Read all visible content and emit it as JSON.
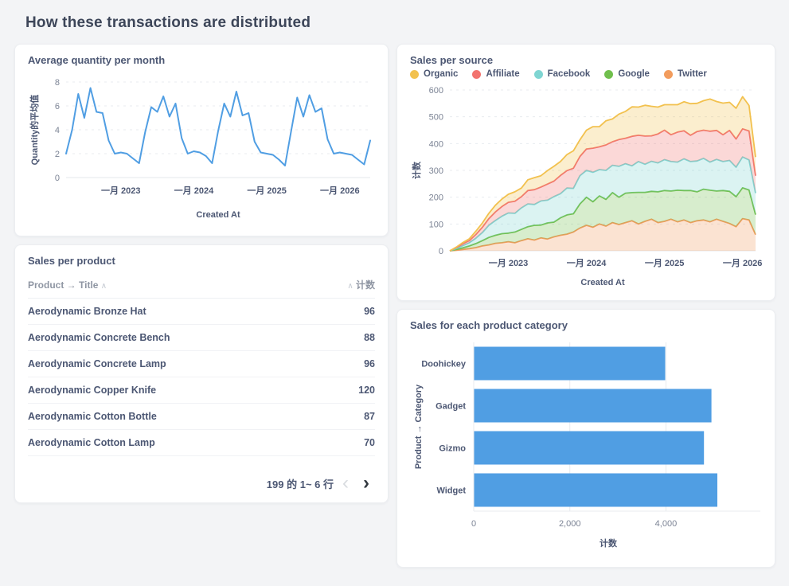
{
  "page": {
    "title": "How these transactions are distributed"
  },
  "colors": {
    "accent": "#509EE3",
    "grid": "#E8EBEF",
    "zero_line": "#E4E7EB",
    "tick": "#7C8495",
    "axis": "#4C5773",
    "title": "#3D4659",
    "page_bg": "#F3F4F6",
    "card_bg": "#FFFFFF"
  },
  "icons": {
    "sort_caret": "∧",
    "prev_page": "‹",
    "next_page": "›"
  },
  "chart_data": [
    {
      "type": "line",
      "title": "Average quantity per month",
      "xlabel": "Created At",
      "ylabel": "Quantity的平均值",
      "ylim": [
        0,
        8
      ],
      "yticks": [
        0,
        2,
        4,
        6,
        8
      ],
      "color": "#509EE3",
      "x_unit": "month",
      "xticks": [
        {
          "i": 9,
          "label": "一月 2023"
        },
        {
          "i": 21,
          "label": "一月 2024"
        },
        {
          "i": 33,
          "label": "一月 2025"
        },
        {
          "i": 45,
          "label": "一月 2026"
        }
      ],
      "values": [
        2.0,
        4.0,
        7.0,
        5.0,
        7.5,
        5.5,
        5.4,
        3.1,
        2.0,
        2.1,
        2.0,
        1.6,
        1.2,
        3.8,
        5.9,
        5.5,
        6.8,
        5.1,
        6.2,
        3.3,
        2.0,
        2.2,
        2.1,
        1.8,
        1.2,
        3.9,
        6.2,
        5.1,
        7.2,
        5.2,
        5.4,
        3.0,
        2.1,
        2.0,
        1.9,
        1.5,
        1.0,
        3.9,
        6.7,
        5.1,
        6.9,
        5.5,
        5.8,
        3.2,
        2.0,
        2.1,
        2.0,
        1.9,
        1.5,
        1.1,
        3.1
      ]
    },
    {
      "type": "area",
      "title": "Sales per source",
      "xlabel": "Created At",
      "ylabel": "计数",
      "ylim": [
        0,
        600
      ],
      "yticks": [
        0,
        100,
        200,
        300,
        400,
        500,
        600
      ],
      "stacked": true,
      "legend_position": "top",
      "xticks": [
        {
          "i": 9,
          "label": "一月 2023"
        },
        {
          "i": 21,
          "label": "一月 2024"
        },
        {
          "i": 33,
          "label": "一月 2025"
        },
        {
          "i": 45,
          "label": "一月 2026"
        }
      ],
      "series": [
        {
          "name": "Organic",
          "color": "#F2C14E",
          "values": [
            0,
            2,
            5,
            7,
            12,
            16,
            20,
            25,
            28,
            30,
            35,
            32,
            40,
            45,
            42,
            50,
            55,
            52,
            60,
            65,
            62,
            70,
            80,
            75,
            90,
            85,
            95,
            100,
            110,
            105,
            115,
            110,
            100,
            95,
            112,
            102,
            108,
            118,
            105,
            110,
            120,
            108,
            118,
            105,
            115,
            120,
            95,
            70
          ]
        },
        {
          "name": "Affiliate",
          "color": "#F2736F",
          "values": [
            0,
            3,
            7,
            8,
            14,
            20,
            25,
            32,
            36,
            40,
            45,
            42,
            50,
            55,
            52,
            60,
            58,
            68,
            65,
            75,
            72,
            80,
            90,
            85,
            95,
            88,
            100,
            95,
            110,
            98,
            105,
            95,
            108,
            110,
            100,
            112,
            105,
            98,
            110,
            105,
            115,
            108,
            100,
            112,
            105,
            105,
            108,
            65
          ]
        },
        {
          "name": "Facebook",
          "color": "#7FD5D2",
          "values": [
            0,
            4,
            8,
            12,
            20,
            30,
            45,
            55,
            65,
            75,
            70,
            80,
            85,
            78,
            90,
            85,
            95,
            90,
            100,
            95,
            105,
            100,
            110,
            98,
            108,
            102,
            115,
            110,
            100,
            115,
            105,
            112,
            108,
            115,
            110,
            105,
            118,
            108,
            115,
            115,
            105,
            118,
            108,
            115,
            110,
            115,
            112,
            80
          ]
        },
        {
          "name": "Google",
          "color": "#70BF4D",
          "values": [
            0,
            3,
            6,
            10,
            15,
            20,
            28,
            30,
            34,
            32,
            40,
            42,
            45,
            55,
            48,
            60,
            55,
            65,
            72,
            68,
            90,
            105,
            95,
            105,
            100,
            112,
            102,
            110,
            105,
            118,
            108,
            104,
            115,
            115,
            105,
            118,
            110,
            120,
            108,
            115,
            118,
            105,
            115,
            120,
            112,
            115,
            112,
            75
          ]
        },
        {
          "name": "Twitter",
          "color": "#F29C5D",
          "values": [
            0,
            2,
            5,
            8,
            12,
            18,
            22,
            28,
            30,
            34,
            30,
            38,
            45,
            40,
            48,
            44,
            52,
            58,
            62,
            70,
            85,
            95,
            88,
            100,
            92,
            105,
            98,
            105,
            112,
            100,
            110,
            118,
            105,
            110,
            118,
            108,
            115,
            105,
            112,
            115,
            108,
            118,
            110,
            102,
            90,
            120,
            115,
            60
          ]
        }
      ],
      "stack_order": [
        4,
        3,
        2,
        1,
        0
      ]
    },
    {
      "type": "table",
      "title": "Sales per product",
      "columns": [
        "Product → Title",
        "计数"
      ],
      "rows": [
        [
          "Aerodynamic Bronze Hat",
          "96"
        ],
        [
          "Aerodynamic Concrete Bench",
          "88"
        ],
        [
          "Aerodynamic Concrete Lamp",
          "96"
        ],
        [
          "Aerodynamic Copper Knife",
          "120"
        ],
        [
          "Aerodynamic Cotton Bottle",
          "87"
        ],
        [
          "Aerodynamic Cotton Lamp",
          "70"
        ]
      ],
      "pagination": "199 的 1~ 6 行"
    },
    {
      "type": "bar",
      "title": "Sales for each product category",
      "orientation": "horizontal",
      "categories": [
        "Doohickey",
        "Gadget",
        "Gizmo",
        "Widget"
      ],
      "values": [
        3976,
        4939,
        4784,
        5061
      ],
      "xlabel": "计数",
      "ylabel": "Product → Category",
      "xlim": [
        0,
        5600
      ],
      "xticks": [
        0,
        2000,
        4000
      ],
      "xtick_labels": [
        "0",
        "2,000",
        "4,000"
      ],
      "color": "#509EE3",
      "grid": true
    }
  ]
}
